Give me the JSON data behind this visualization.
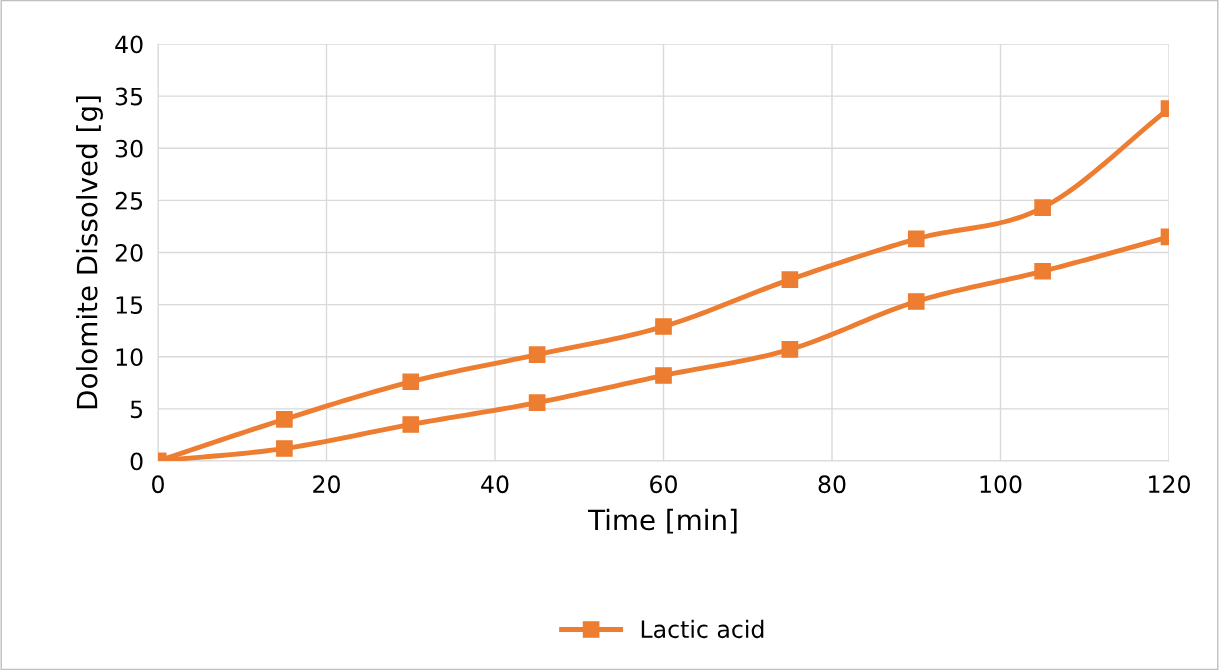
{
  "chart_data": {
    "type": "line",
    "xlabel": "Time [min]",
    "ylabel": "Dolomite Dissolved [g]",
    "x": [
      0,
      15,
      30,
      45,
      60,
      75,
      90,
      105,
      120
    ],
    "series": [
      {
        "name": "Lactic acid",
        "color": "#ed7d31",
        "values": [
          0,
          4.0,
          7.6,
          10.2,
          12.9,
          17.4,
          21.3,
          24.3,
          33.8
        ]
      },
      {
        "color": "#ed7d31",
        "values": [
          0,
          1.2,
          3.5,
          5.6,
          8.2,
          10.7,
          15.3,
          18.2,
          21.5
        ]
      }
    ],
    "xlim": [
      0,
      120
    ],
    "xticks": [
      0,
      20,
      40,
      60,
      80,
      100,
      120
    ],
    "ylim": [
      0,
      40
    ],
    "yticks": [
      0,
      5,
      10,
      15,
      20,
      25,
      30,
      35,
      40
    ],
    "grid": true,
    "legend": "bottom",
    "marker": "square",
    "line_style": "solid"
  }
}
